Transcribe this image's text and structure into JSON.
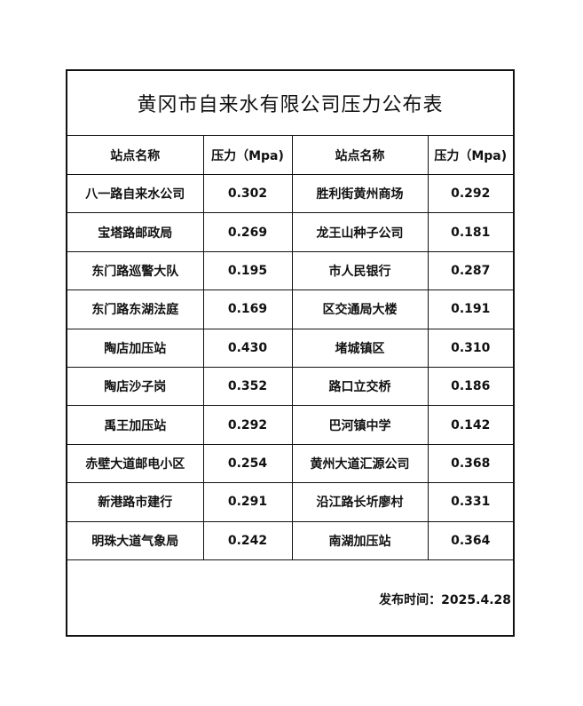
{
  "title": "黄冈市自来水有限公司压力公布表",
  "headers": [
    "站点名称",
    "压力（Mpa)",
    "站点名称",
    "压力（Mpa)"
  ],
  "rows": [
    [
      "八一路自来水公司",
      "0.302",
      "胜利街黄州商场",
      "0.292"
    ],
    [
      "宝塔路邮政局",
      "0.269",
      "龙王山种子公司",
      "0.181"
    ],
    [
      "东门路巡警大队",
      "0.195",
      "市人民银行",
      "0.287"
    ],
    [
      "东门路东湖法庭",
      "0.169",
      "区交通局大楼",
      "0.191"
    ],
    [
      "陶店加压站",
      "0.430",
      "堵城镇区",
      "0.310"
    ],
    [
      "陶店沙子岗",
      "0.352",
      "路口立交桥",
      "0.186"
    ],
    [
      "禹王加压站",
      "0.292",
      "巴河镇中学",
      "0.142"
    ],
    [
      "赤壁大道邮电小区",
      "0.254",
      "黄州大道汇源公司",
      "0.368"
    ],
    [
      "新港路市建行",
      "0.291",
      "沿江路长圻廖村",
      "0.331"
    ],
    [
      "明珠大道气象局",
      "0.242",
      "南湖加压站",
      "0.364"
    ]
  ],
  "footer": {
    "publish_time": "发布时间：2025.4.28"
  }
}
